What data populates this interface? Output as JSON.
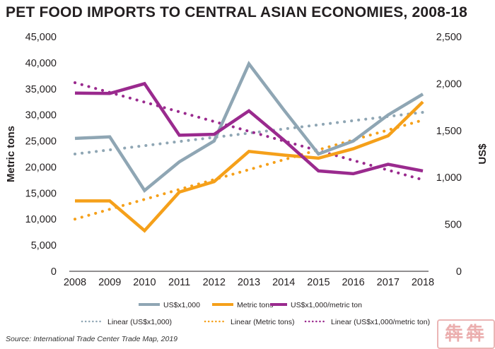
{
  "chart_data": {
    "type": "line",
    "title": "PET FOOD IMPORTS TO CENTRAL ASIAN ECONOMIES, 2008-18",
    "x": [
      "2008",
      "2009",
      "2010",
      "2011",
      "2012",
      "2013",
      "2014",
      "2015",
      "2016",
      "2017",
      "2018"
    ],
    "left_axis": {
      "label": "Metric tons",
      "min": 0,
      "max": 45000,
      "ticks": [
        0,
        5000,
        10000,
        15000,
        20000,
        25000,
        30000,
        35000,
        40000,
        45000
      ],
      "tick_labels": [
        "0",
        "5,000",
        "10,000",
        "15,000",
        "20,000",
        "25,000",
        "30,000",
        "35,000",
        "40,000",
        "45,000"
      ]
    },
    "right_axis": {
      "label": "US$",
      "min": 0,
      "max": 2500,
      "ticks": [
        0,
        500,
        1000,
        1500,
        2000,
        2500
      ],
      "tick_labels": [
        "0",
        "500",
        "1,000",
        "1,500",
        "2,000",
        "2,500"
      ]
    },
    "series": [
      {
        "name": "US$x1,000",
        "axis": "left",
        "color": "#8fa6b4",
        "values": [
          25500,
          25800,
          15500,
          21000,
          25000,
          39800,
          31000,
          22500,
          25000,
          30000,
          34000
        ]
      },
      {
        "name": "Metric tons",
        "axis": "left",
        "color": "#f5a01a",
        "values": [
          13500,
          13500,
          7800,
          15200,
          17200,
          23000,
          22300,
          21700,
          23500,
          26000,
          32500
        ]
      },
      {
        "name": "US$x1,000/metric ton",
        "axis": "right",
        "color": "#9a2a8e",
        "values": [
          1900,
          1895,
          2000,
          1450,
          1460,
          1710,
          1400,
          1070,
          1040,
          1140,
          1070
        ]
      }
    ],
    "trendlines": [
      {
        "name": "Linear (US$x1,000)",
        "axis": "left",
        "color": "#8fa6b4",
        "values": [
          22500,
          30500
        ]
      },
      {
        "name": "Linear (Metric tons)",
        "axis": "left",
        "color": "#f5a01a",
        "values": [
          10000,
          29000
        ]
      },
      {
        "name": "Linear (US$x1,000/metric ton)",
        "axis": "right",
        "color": "#9a2a8e",
        "values": [
          2010,
          975
        ]
      }
    ]
  },
  "source": "Source: International Trade Center Trade Map, 2019",
  "watermark": "犇犇"
}
